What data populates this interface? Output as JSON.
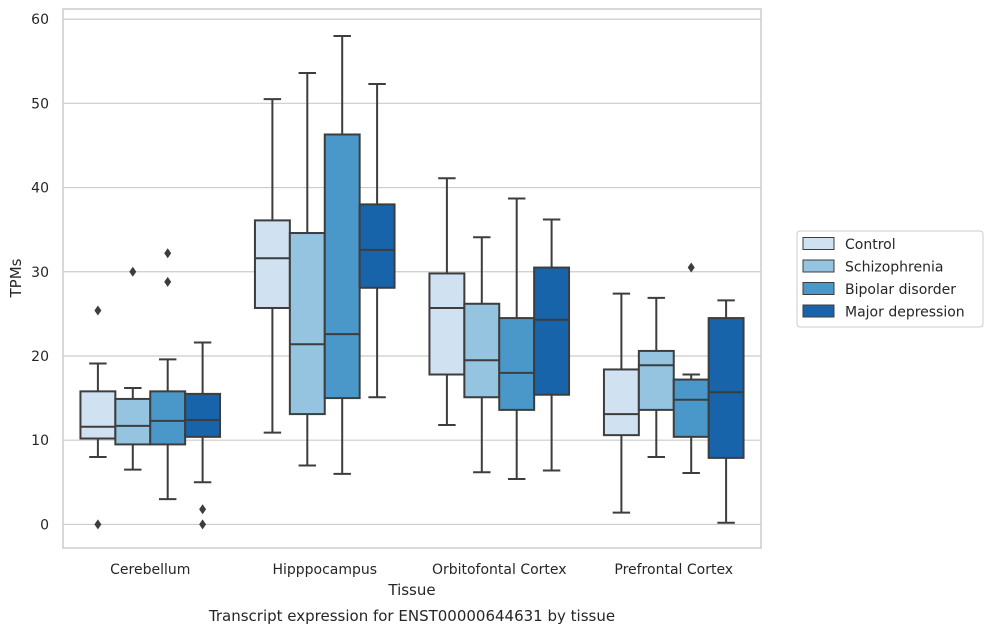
{
  "chart_data": {
    "type": "box",
    "title": "",
    "caption": "Transcript expression for ENST00000644631 by tissue",
    "xlabel": "Tissue",
    "ylabel": "TPMs",
    "ylim": [
      -2.8,
      61.2
    ],
    "yticks": [
      0,
      10,
      20,
      30,
      40,
      50,
      60
    ],
    "grid": "horizontal",
    "legend_placement": "right",
    "categories": [
      "Cerebellum",
      "Hipppocampus",
      "Orbitofontal Cortex",
      "Prefrontal Cortex"
    ],
    "series": [
      {
        "name": "Control",
        "color": "#d0e1f2",
        "boxes": [
          {
            "whislo": 8.0,
            "q1": 10.2,
            "med": 11.6,
            "q3": 15.8,
            "whishi": 19.1,
            "fliers": [
              25.4,
              0.0
            ]
          },
          {
            "whislo": 10.9,
            "q1": 25.7,
            "med": 31.6,
            "q3": 36.1,
            "whishi": 50.5,
            "fliers": []
          },
          {
            "whislo": 11.8,
            "q1": 17.8,
            "med": 25.7,
            "q3": 29.8,
            "whishi": 41.1,
            "fliers": []
          },
          {
            "whislo": 1.4,
            "q1": 10.6,
            "med": 13.1,
            "q3": 18.4,
            "whishi": 27.4,
            "fliers": []
          }
        ]
      },
      {
        "name": "Schizophrenia",
        "color": "#94c4df",
        "boxes": [
          {
            "whislo": 6.5,
            "q1": 9.5,
            "med": 11.7,
            "q3": 14.9,
            "whishi": 16.2,
            "fliers": [
              30.0
            ]
          },
          {
            "whislo": 7.0,
            "q1": 13.1,
            "med": 21.4,
            "q3": 34.6,
            "whishi": 53.6,
            "fliers": []
          },
          {
            "whislo": 6.2,
            "q1": 15.1,
            "med": 19.5,
            "q3": 26.2,
            "whishi": 34.1,
            "fliers": []
          },
          {
            "whislo": 8.0,
            "q1": 13.6,
            "med": 18.9,
            "q3": 20.6,
            "whishi": 26.9,
            "fliers": []
          }
        ]
      },
      {
        "name": "Bipolar disorder",
        "color": "#4a98c9",
        "boxes": [
          {
            "whislo": 3.0,
            "q1": 9.5,
            "med": 12.3,
            "q3": 15.8,
            "whishi": 19.6,
            "fliers": [
              32.2,
              28.8
            ]
          },
          {
            "whislo": 6.0,
            "q1": 15.0,
            "med": 22.6,
            "q3": 46.3,
            "whishi": 58.0,
            "fliers": []
          },
          {
            "whislo": 5.4,
            "q1": 13.6,
            "med": 18.0,
            "q3": 24.5,
            "whishi": 38.7,
            "fliers": []
          },
          {
            "whislo": 6.1,
            "q1": 10.4,
            "med": 14.8,
            "q3": 17.2,
            "whishi": 17.8,
            "fliers": [
              30.5
            ]
          }
        ]
      },
      {
        "name": "Major depression",
        "color": "#1764ab",
        "boxes": [
          {
            "whislo": 5.0,
            "q1": 10.4,
            "med": 12.4,
            "q3": 15.5,
            "whishi": 21.6,
            "fliers": [
              1.8,
              0.0
            ]
          },
          {
            "whislo": 15.1,
            "q1": 28.1,
            "med": 32.6,
            "q3": 38.0,
            "whishi": 52.3,
            "fliers": []
          },
          {
            "whislo": 6.4,
            "q1": 15.4,
            "med": 24.3,
            "q3": 30.5,
            "whishi": 36.2,
            "fliers": []
          },
          {
            "whislo": 0.2,
            "q1": 7.9,
            "med": 15.7,
            "q3": 24.5,
            "whishi": 26.6,
            "fliers": []
          }
        ]
      }
    ]
  }
}
